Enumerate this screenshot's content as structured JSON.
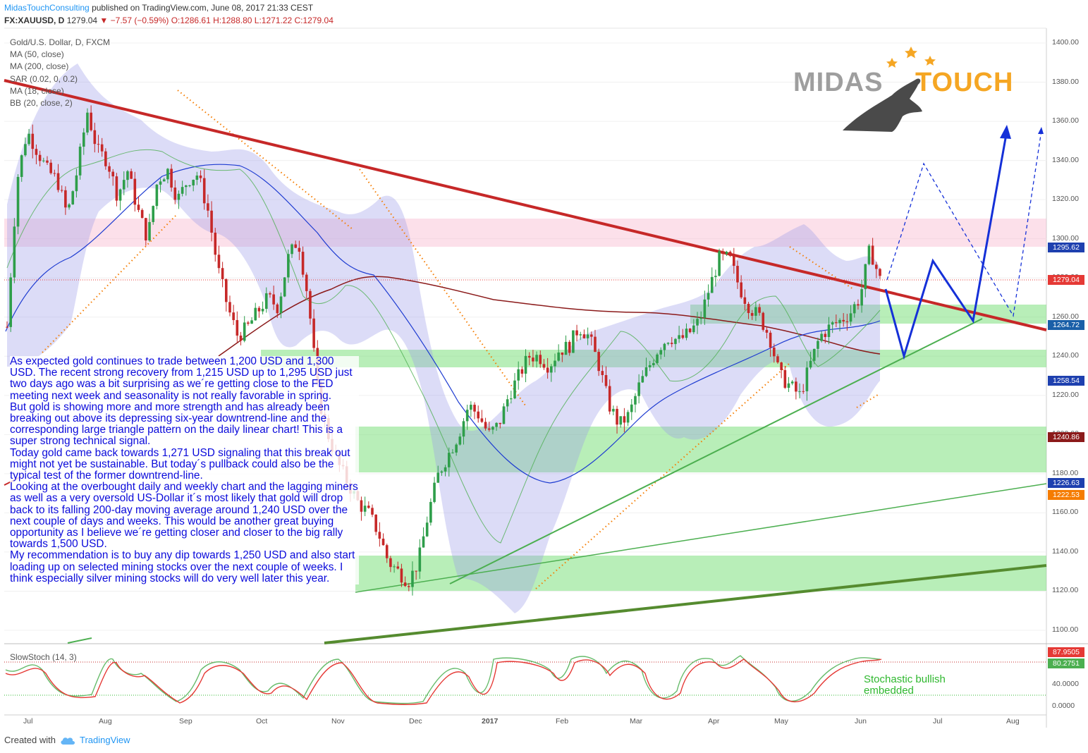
{
  "header": {
    "author": "MidasTouchConsulting",
    "published": "published on TradingView.com, June 08, 2017 21:33 CEST",
    "symbol": "FX:XAUUSD, D",
    "last": "1279.04",
    "change": "▼ −7.57 (−0.59%)",
    "ohlc": "O:1286.61 H:1288.80 L:1271.22 C:1279.04"
  },
  "legend": {
    "title": "Gold/U.S. Dollar, D, FXCM",
    "ma50": "MA (50, close)",
    "ma200": "MA (200, close)",
    "sar": "SAR (0.02, 0, 0.2)",
    "ma18": "MA (18, close)",
    "bb": "BB (20, close, 2)"
  },
  "logo": {
    "word1": "MIDAS",
    "word2": "TOUCH",
    "colors": {
      "gray": "#9e9e9e",
      "orange": "#f5a623",
      "dark": "#4a4a4a"
    }
  },
  "commentary": [
    "As expected gold continues to trade between 1,200 USD and 1,300 USD. The recent strong recovery from 1,215 USD up to 1,295 USD just two days ago was a bit surprising as we´re getting close to the FED meeting next week and seasonality is not really favorable in spring.",
    "But gold is showing more and more strength and has already been breaking out above its depressing six-year downtrend-line and the corresponding large triangle pattern on the daily linear chart! This is a super strong technical signal.",
    "Today gold came back towards 1,271 USD signaling that this break out might not yet be sustainable. But today´s pullback could also be the typical test of the former downtrend-line.",
    "Looking at the overbought daily and weekly chart and the lagging miners as well as a very oversold US-Dollar it´s most likely that gold will drop back to its falling 200-day moving average around 1,240 USD over the next couple of days and weeks. This would be another great buying opportunity as I believe we´re getting closer and closer to the big rally towards 1,500 USD.",
    "My recommendation is to buy any dip towards 1,250 USD and also start loading up on selected mining stocks over the next couple of weeks. I think especially silver mining stocks will do very well later this year."
  ],
  "stochastic": {
    "label": "SlowStoch (14, 3)",
    "note_line1": "Stochastic bullish",
    "note_line2": "embedded",
    "ticks": [
      "0.0000",
      "40.0000"
    ]
  },
  "footer": {
    "created_with": "Created with",
    "brand": "TradingView"
  },
  "price_labels": [
    {
      "text": "1295.62",
      "value": 1295.62,
      "color": "#1e40af"
    },
    {
      "text": "1279.04",
      "value": 1279.04,
      "color": "#e53935"
    },
    {
      "text": "1264.72",
      "value": 1264.72,
      "color": "#1a5fa8"
    },
    {
      "text": "1258.54",
      "value": 1258.54,
      "color": "#1e40af"
    },
    {
      "text": "1240.86",
      "value": 1240.86,
      "color": "#8b1a1a"
    },
    {
      "text": "1226.63",
      "value": 1226.63,
      "color": "#1e40af"
    },
    {
      "text": "1222.53",
      "value": 1222.53,
      "color": "#f57c00"
    }
  ],
  "stoch_labels": [
    {
      "text": "87.9505",
      "value": 87.9505,
      "color": "#e53935"
    },
    {
      "text": "80.2751",
      "value": 80.2751,
      "color": "#4caf50"
    }
  ],
  "chart_data": {
    "type": "candlestick",
    "title": "Gold/U.S. Dollar, D, FXCM",
    "y_axis": {
      "min": 1090,
      "max": 1405,
      "ticks": [
        1100,
        1120,
        1140,
        1160,
        1180,
        1200,
        1220,
        1240,
        1260,
        1280,
        1300,
        1320,
        1340,
        1360,
        1380,
        1400
      ]
    },
    "x_axis": {
      "labels": [
        "Jul",
        "Aug",
        "Sep",
        "Oct",
        "Nov",
        "Dec",
        "2017",
        "Feb",
        "Mar",
        "Apr",
        "May",
        "Jun",
        "Jul",
        "Aug"
      ]
    },
    "close_path": [
      1255,
      1330,
      1355,
      1345,
      1335,
      1330,
      1312,
      1335,
      1365,
      1345,
      1340,
      1322,
      1335,
      1315,
      1300,
      1330,
      1335,
      1320,
      1330,
      1333,
      1315,
      1285,
      1265,
      1250,
      1255,
      1263,
      1270,
      1265,
      1290,
      1300,
      1270,
      1220,
      1200,
      1185,
      1175,
      1165,
      1160,
      1150,
      1135,
      1130,
      1125,
      1135,
      1160,
      1180,
      1190,
      1200,
      1215,
      1210,
      1200,
      1205,
      1220,
      1230,
      1240,
      1240,
      1235,
      1243,
      1245,
      1255,
      1250,
      1235,
      1215,
      1205,
      1210,
      1225,
      1235,
      1245,
      1250,
      1248,
      1252,
      1258,
      1275,
      1290,
      1290,
      1275,
      1265,
      1260,
      1250,
      1230,
      1225,
      1220,
      1235,
      1250,
      1255,
      1258,
      1262,
      1270,
      1295,
      1279
    ]
  }
}
